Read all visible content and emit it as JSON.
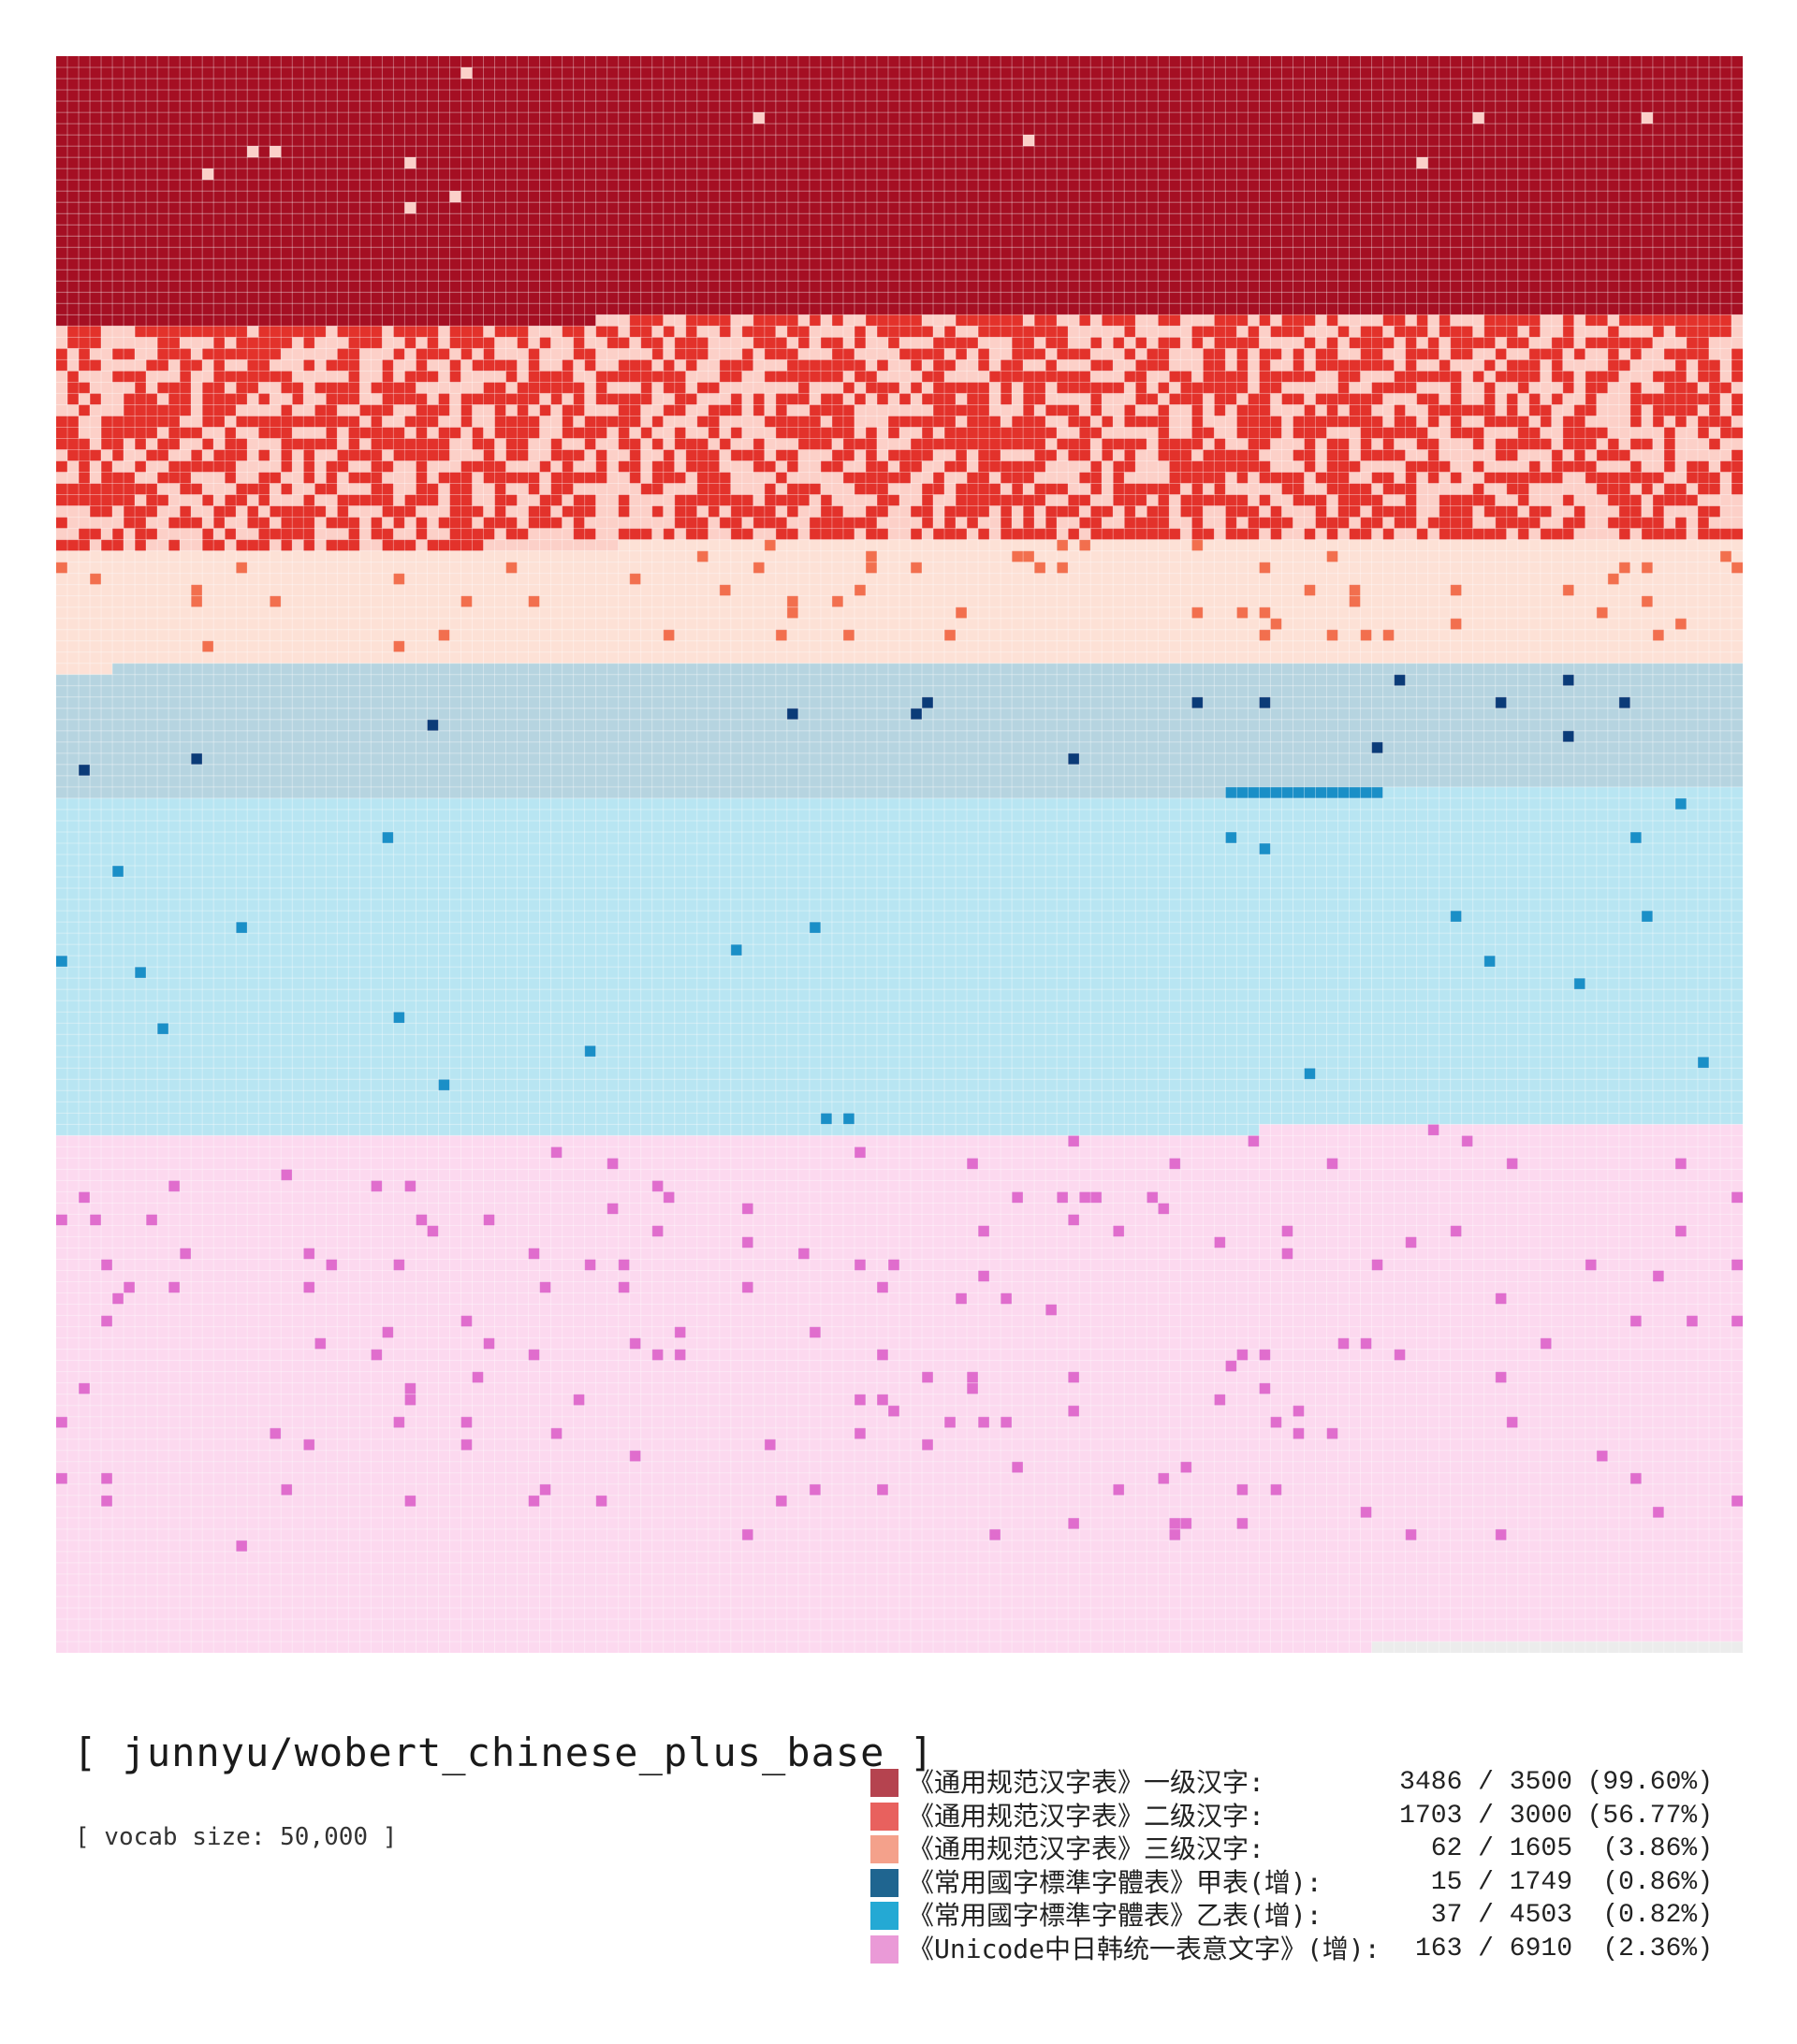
{
  "title": "[ junnyu/wobert_chinese_plus_base ]",
  "subtitle": "[ vocab size: 50,000 ]",
  "chart_data": {
    "type": "heatmap",
    "title": "[ junnyu/wobert_chinese_plus_base ]",
    "vocab_size": "50,000",
    "empty_color": "#ececec",
    "categories": [
      {
        "name": "《通用规范汉字表》一级汉字:",
        "covered": 3486,
        "total": 3500,
        "percent": "(99.60%)",
        "count_label": "3486 / 3500",
        "legend_color": "#b5434f",
        "covered_color": "#a50f23",
        "missing_color": "#fbd0c9"
      },
      {
        "name": "《通用规范汉字表》二级汉字:",
        "covered": 1703,
        "total": 3000,
        "percent": "(56.77%)",
        "count_label": "1703 / 3000",
        "legend_color": "#e8615e",
        "covered_color": "#e3322b",
        "missing_color": "#fcd0c8"
      },
      {
        "name": "《通用规范汉字表》三级汉字:",
        "covered": 62,
        "total": 1605,
        "percent": "(3.86%)",
        "count_label": "62 / 1605",
        "legend_color": "#f4a18b",
        "covered_color": "#f26f4e",
        "missing_color": "#fde1d6"
      },
      {
        "name": "《常用國字標準字體表》甲表(增):",
        "covered": 15,
        "total": 1749,
        "percent": "(0.86%)",
        "count_label": "15 / 1749",
        "legend_color": "#1f6590",
        "covered_color": "#0b3b78",
        "missing_color": "#b6d4e0"
      },
      {
        "name": "《常用國字標準字體表》乙表(增):",
        "covered": 37,
        "total": 4503,
        "percent": "(0.82%)",
        "count_label": "37 / 4503",
        "legend_color": "#24a9d4",
        "covered_color": "#1a8fc7",
        "missing_color": "#b8e5f2"
      },
      {
        "name": "《Unicode中日韩统一表意文字》(增):",
        "covered": 163,
        "total": 6910,
        "percent": "(2.36%)",
        "count_label": "163 / 6910",
        "legend_color": "#ea9ad7",
        "covered_color": "#e06dcd",
        "missing_color": "#fcd9ef"
      }
    ]
  }
}
